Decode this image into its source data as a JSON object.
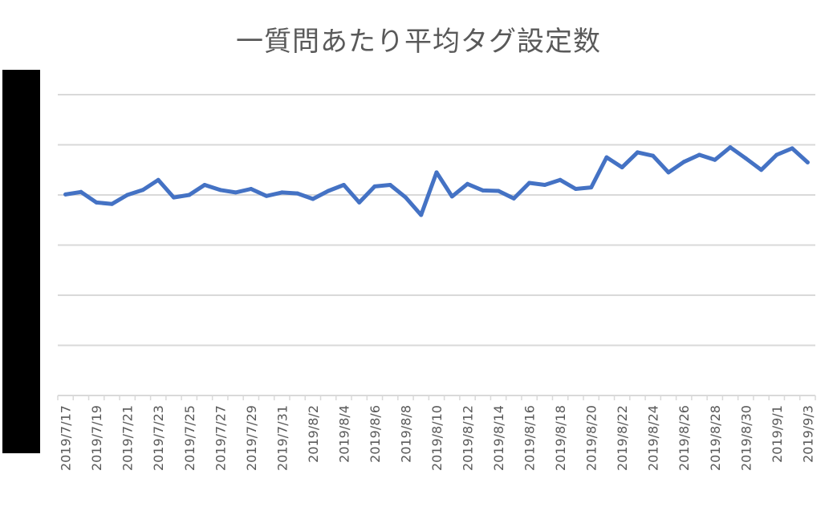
{
  "chart_data": {
    "type": "line",
    "title": "一質問あたり平均タグ設定数",
    "xlabel": "",
    "ylabel": "",
    "grid": true,
    "y_gridlines": 6,
    "x_tick_labels": [
      "2019/7/17",
      "2019/7/19",
      "2019/7/21",
      "2019/7/23",
      "2019/7/25",
      "2019/7/27",
      "2019/7/29",
      "2019/7/31",
      "2019/8/2",
      "2019/8/4",
      "2019/8/6",
      "2019/8/8",
      "2019/8/10",
      "2019/8/12",
      "2019/8/14",
      "2019/8/16",
      "2019/8/18",
      "2019/8/20",
      "2019/8/22",
      "2019/8/24",
      "2019/8/26",
      "2019/8/28",
      "2019/8/30",
      "2019/9/1",
      "2019/9/3"
    ],
    "series": [
      {
        "color": "#4472C4",
        "values": [
          4.01,
          4.06,
          3.85,
          3.82,
          4.0,
          4.1,
          4.3,
          3.95,
          4.0,
          4.2,
          4.1,
          4.05,
          4.12,
          3.98,
          4.05,
          4.03,
          3.92,
          4.08,
          4.2,
          3.85,
          4.17,
          4.2,
          3.95,
          3.6,
          4.45,
          3.97,
          4.22,
          4.09,
          4.08,
          3.93,
          4.24,
          4.2,
          4.3,
          4.12,
          4.15,
          4.75,
          4.55,
          4.85,
          4.78,
          4.45,
          4.66,
          4.8,
          4.7,
          4.95,
          4.73,
          4.5,
          4.8,
          4.93,
          4.65
        ]
      }
    ],
    "ylim": [
      0,
      6
    ]
  }
}
